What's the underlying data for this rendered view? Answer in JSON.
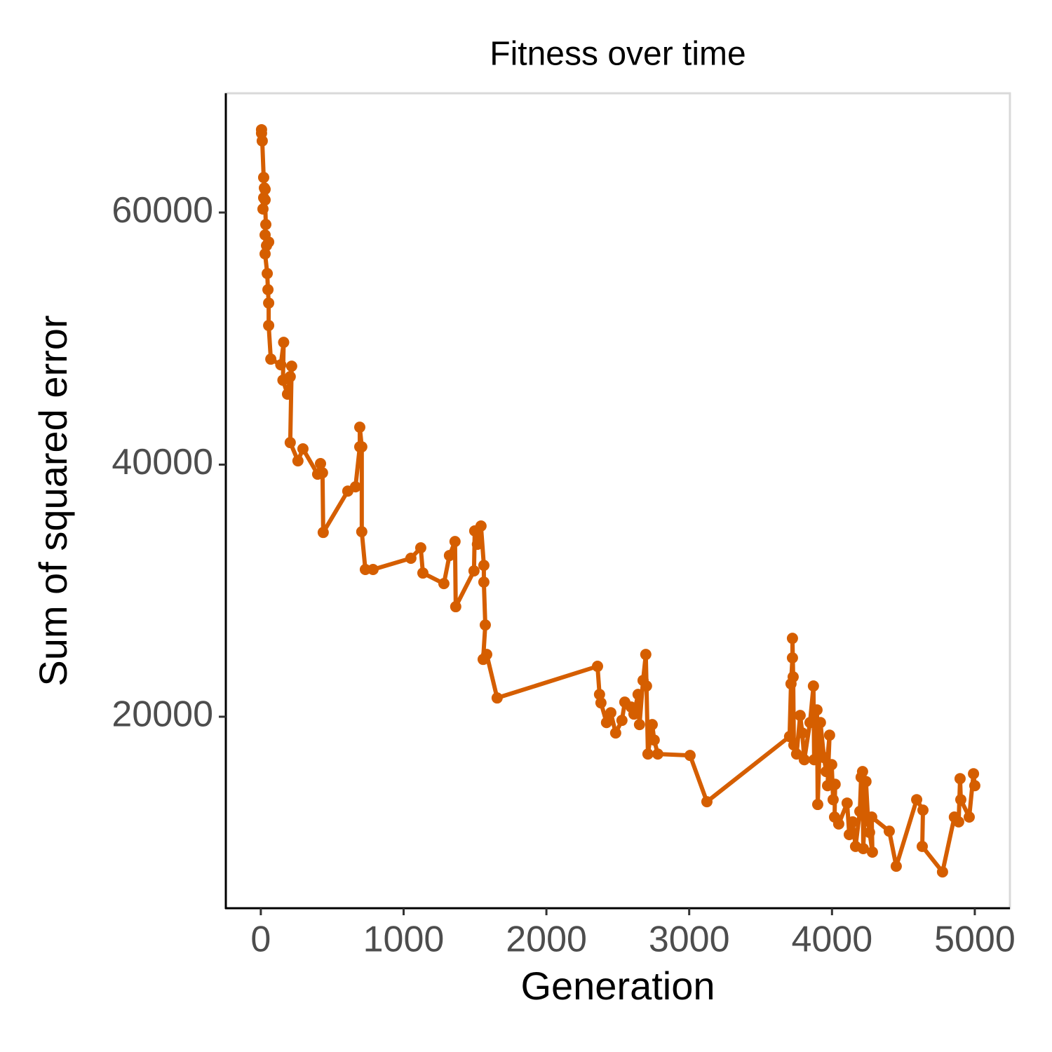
{
  "chart_data": {
    "type": "line",
    "title": "Fitness over time",
    "x_label": "Generation",
    "y_label": "Sum of squared error",
    "x": [
      5,
      5,
      10,
      20,
      25,
      20,
      30,
      15,
      30,
      35,
      30,
      40,
      55,
      30,
      45,
      50,
      55,
      55,
      70,
      140,
      160,
      155,
      187,
      206,
      216,
      206,
      260,
      295,
      398,
      418,
      432,
      437,
      609,
      663,
      693,
      693,
      707,
      707,
      732,
      786,
      1051,
      1120,
      1135,
      1282,
      1321,
      1360,
      1365,
      1493,
      1498,
      1517,
      1542,
      1562,
      1562,
      1572,
      1557,
      1582,
      1655,
      2358,
      2372,
      2382,
      2421,
      2451,
      2485,
      2529,
      2549,
      2593,
      2613,
      2642,
      2652,
      2677,
      2696,
      2701,
      2711,
      2741,
      2755,
      2780,
      3006,
      3124,
      3703,
      3713,
      3723,
      3723,
      3728,
      3733,
      3752,
      3777,
      3792,
      3806,
      3846,
      3870,
      3875,
      3895,
      3900,
      3919,
      3944,
      3959,
      3983,
      3969,
      3998,
      4008,
      4022,
      4018,
      4047,
      4106,
      4121,
      4145,
      4165,
      4195,
      4204,
      4214,
      4219,
      4238,
      4253,
      4263,
      4283,
      4278,
      4401,
      4450,
      4593,
      4637,
      4632,
      4774,
      4857,
      4887,
      4897,
      4902,
      4961,
      4991,
      5000
    ],
    "series": [
      {
        "name": "fitness",
        "color": "#d55e00",
        "values": [
          66570,
          66290,
          65680,
          62780,
          61950,
          61170,
          61840,
          60280,
          61000,
          59050,
          58220,
          57380,
          57660,
          56720,
          55160,
          53880,
          52820,
          51040,
          48370,
          47920,
          49700,
          46700,
          45590,
          46980,
          47810,
          41750,
          40300,
          41250,
          39240,
          40080,
          39350,
          34620,
          37900,
          38240,
          41410,
          42970,
          41410,
          34680,
          31680,
          31680,
          32570,
          33400,
          31400,
          30560,
          32790,
          33900,
          28730,
          31570,
          34740,
          33680,
          35130,
          32010,
          30680,
          27280,
          24550,
          24940,
          21490,
          24000,
          21770,
          21100,
          19540,
          20320,
          18710,
          19710,
          21160,
          20770,
          20210,
          21770,
          19380,
          22880,
          24940,
          22440,
          17040,
          19380,
          18150,
          17040,
          16930,
          13260,
          18430,
          22610,
          24670,
          26220,
          23160,
          17760,
          17040,
          20100,
          18710,
          16590,
          19540,
          22440,
          16590,
          20540,
          13040,
          19540,
          16760,
          15650,
          18540,
          14530,
          16200,
          13420,
          14640,
          12040,
          11490,
          13150,
          10650,
          11660,
          9710,
          12490,
          15200,
          15650,
          9540,
          14860,
          11710,
          10820,
          9260,
          12040,
          10920,
          8140,
          13420,
          12590,
          9710,
          7690,
          12040,
          11660,
          15090,
          13420,
          12040,
          15480,
          14530
        ]
      }
    ],
    "xlim": [
      -245,
      5246
    ],
    "ylim": [
      4808,
      69460
    ],
    "xticks": [
      0,
      1000,
      2000,
      3000,
      4000,
      5000
    ],
    "yticks": [
      20000,
      40000,
      60000
    ],
    "grid": false
  }
}
